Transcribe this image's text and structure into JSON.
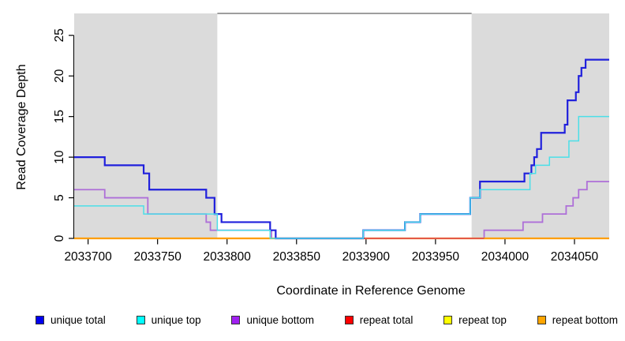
{
  "figure": {
    "xlabel": "Coordinate in Reference Genome",
    "ylabel": "Read Coverage Depth"
  },
  "chart_data": {
    "type": "line",
    "subtype": "step",
    "title": "",
    "xlabel": "Coordinate in Reference Genome",
    "ylabel": "Read Coverage Depth",
    "xlim": [
      2033690,
      2034075
    ],
    "ylim": [
      0,
      27.7
    ],
    "x_ticks": [
      2033700,
      2033750,
      2033800,
      2033850,
      2033900,
      2033950,
      2034000,
      2034050
    ],
    "y_ticks": [
      0,
      5,
      10,
      15,
      20,
      25
    ],
    "grid": false,
    "legend_position": "bottom",
    "background_color": "#ffffff",
    "shaded_regions": [
      {
        "x1": 2033690,
        "x2": 2033793,
        "color": "#DBDBDB",
        "label": "repeat-region-left"
      },
      {
        "x1": 2033976,
        "x2": 2034075,
        "color": "#DBDBDB",
        "label": "repeat-region-right"
      }
    ],
    "top_border": {
      "x1": 2033793,
      "x2": 2033976,
      "color": "#7F7F7F"
    },
    "draw_order": [
      "repeat top",
      "unique bottom",
      "repeat bottom",
      "repeat total",
      "unique total",
      "unique top"
    ],
    "series": [
      {
        "name": "unique total",
        "swatch_color": "#0000EE",
        "stroke_color": "#2020DC",
        "stroke_width": 2.2,
        "steps": [
          [
            2033690,
            10
          ],
          [
            2033712,
            9
          ],
          [
            2033740,
            8
          ],
          [
            2033744,
            6
          ],
          [
            2033785,
            5
          ],
          [
            2033791,
            3
          ],
          [
            2033796,
            2
          ],
          [
            2033831,
            1
          ],
          [
            2033835,
            0
          ],
          [
            2033898,
            1
          ],
          [
            2033928,
            2
          ],
          [
            2033939,
            3
          ],
          [
            2033975,
            5
          ],
          [
            2033982,
            7
          ],
          [
            2034014,
            8
          ],
          [
            2034019,
            9
          ],
          [
            2034021,
            10
          ],
          [
            2034023,
            11
          ],
          [
            2034026,
            13
          ],
          [
            2034043,
            14
          ],
          [
            2034045,
            17
          ],
          [
            2034051,
            18
          ],
          [
            2034053,
            20
          ],
          [
            2034055,
            21
          ],
          [
            2034058,
            22
          ]
        ],
        "x_end": 2034075
      },
      {
        "name": "unique top",
        "swatch_color": "#00FFFF",
        "stroke_color": "#4BDFE8",
        "stroke_width": 1.5,
        "steps": [
          [
            2033690,
            4
          ],
          [
            2033740,
            3
          ],
          [
            2033793,
            1
          ],
          [
            2033831,
            0
          ],
          [
            2033898,
            1
          ],
          [
            2033928,
            2
          ],
          [
            2033939,
            3
          ],
          [
            2033975,
            5
          ],
          [
            2033982,
            6
          ],
          [
            2034018,
            8
          ],
          [
            2034022,
            9
          ],
          [
            2034032,
            10
          ],
          [
            2034046,
            12
          ],
          [
            2034053,
            15
          ]
        ],
        "x_end": 2034075
      },
      {
        "name": "unique bottom",
        "swatch_color": "#A020F0",
        "stroke_color": "#AE6FD8",
        "stroke_width": 1.8,
        "steps": [
          [
            2033690,
            6
          ],
          [
            2033712,
            5
          ],
          [
            2033743,
            3
          ],
          [
            2033785,
            2
          ],
          [
            2033788,
            1
          ],
          [
            2033832,
            0
          ],
          [
            2033985,
            1
          ],
          [
            2034013,
            2
          ],
          [
            2034027,
            3
          ],
          [
            2034044,
            4
          ],
          [
            2034049,
            5
          ],
          [
            2034053,
            6
          ],
          [
            2034059,
            7
          ]
        ],
        "x_end": 2034075
      },
      {
        "name": "repeat total",
        "swatch_color": "#FF0000",
        "stroke_color": "#E05050",
        "stroke_width": 1.8,
        "steps": [
          [
            2033690,
            0
          ]
        ],
        "x_end": 2034075,
        "visible_segment": [
          2033898,
          2033985
        ]
      },
      {
        "name": "repeat top",
        "swatch_color": "#FFFF00",
        "stroke_color": "#F0F000",
        "stroke_width": 1.8,
        "steps": [
          [
            2033690,
            0
          ]
        ],
        "x_end": 2034075
      },
      {
        "name": "repeat bottom",
        "swatch_color": "#FFA500",
        "stroke_color": "#FF9E00",
        "stroke_width": 2.2,
        "steps": [
          [
            2033690,
            0
          ]
        ],
        "x_end": 2034075
      }
    ]
  }
}
